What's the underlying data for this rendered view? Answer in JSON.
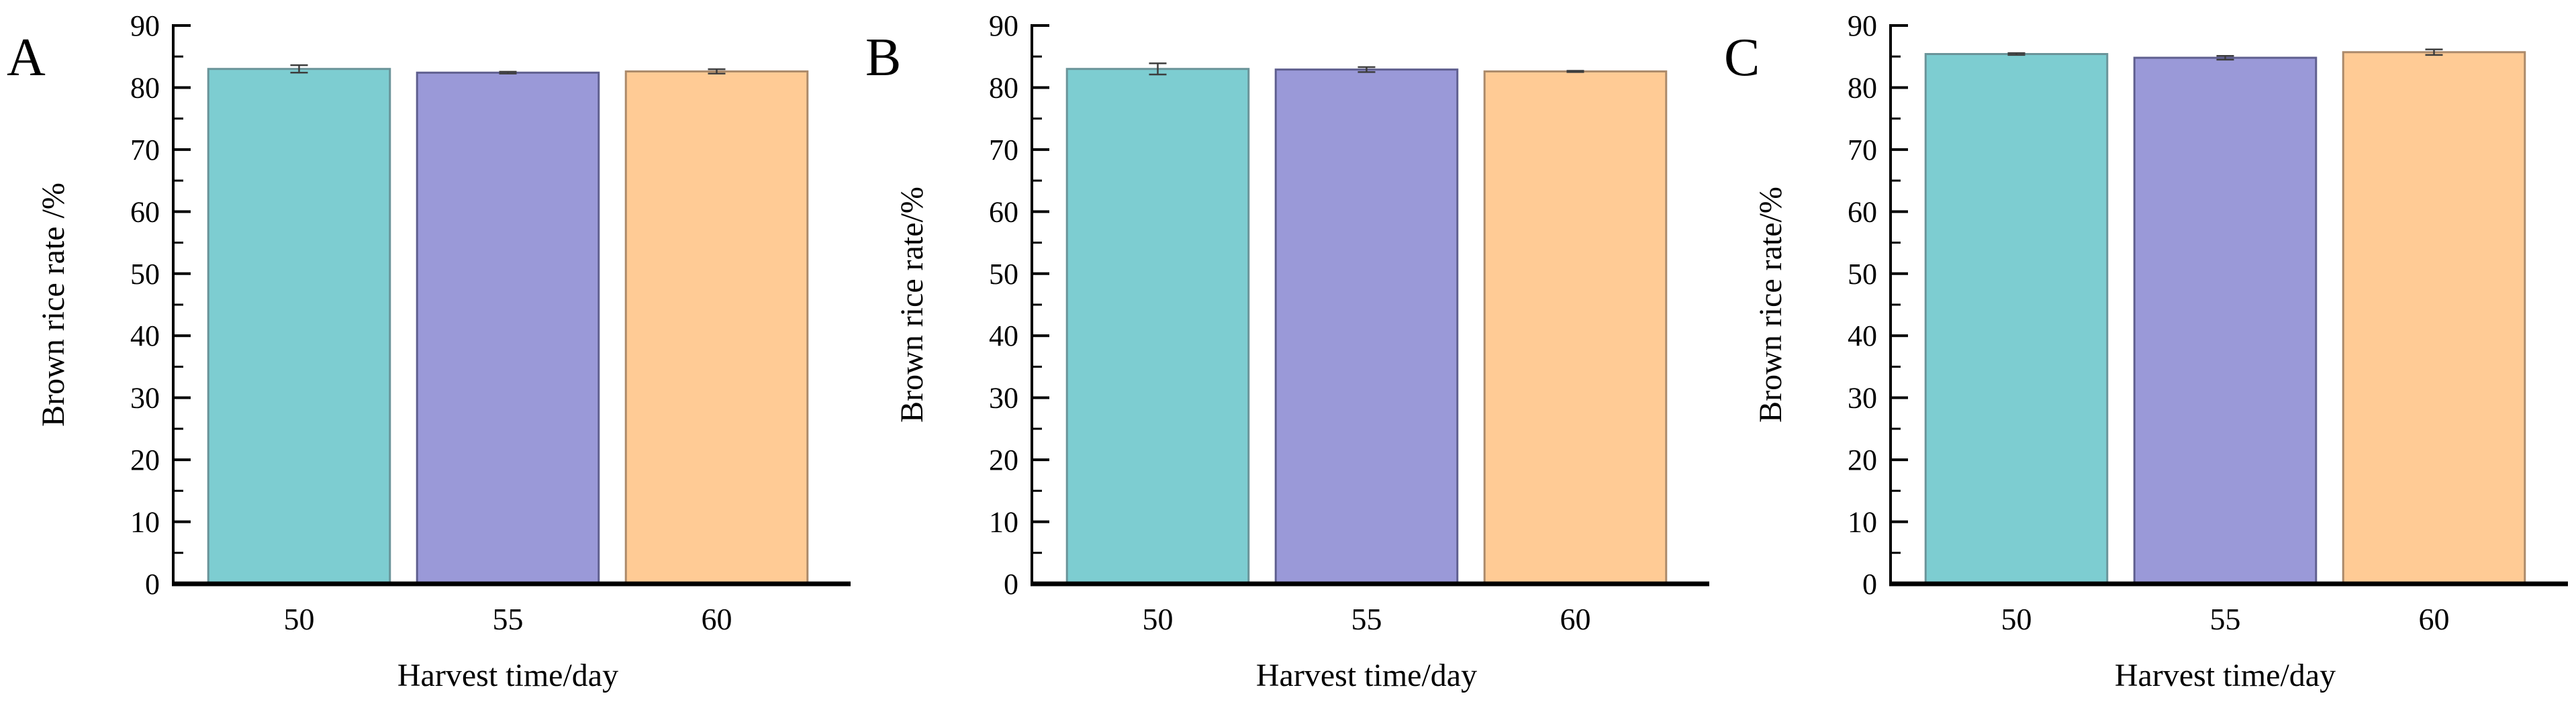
{
  "figure": {
    "background": "#ffffff",
    "text_color": "#000000",
    "error_bar_color": "#3d3d3d"
  },
  "chart_data": [
    {
      "type": "bar",
      "panel_label": "A",
      "title": "",
      "xlabel": "Harvest time/day",
      "ylabel": "Brown rice rate /%",
      "categories": [
        "50",
        "55",
        "60"
      ],
      "values": [
        83.0,
        82.4,
        82.6
      ],
      "errors": [
        0.6,
        0.15,
        0.35
      ],
      "ylim": [
        0,
        90
      ],
      "ytick_step": 10,
      "yminor_step": 5,
      "grid": false,
      "legend": null,
      "bar_colors": [
        "#7dcdd1",
        "#9a99d8",
        "#ffcb95"
      ],
      "bar_border_colors": [
        "#6a9499",
        "#5f5f8f",
        "#ab8a6b"
      ]
    },
    {
      "type": "bar",
      "panel_label": "B",
      "title": "",
      "xlabel": "Harvest time/day",
      "ylabel": "Brown rice rate/%",
      "categories": [
        "50",
        "55",
        "60"
      ],
      "values": [
        83.0,
        82.9,
        82.6
      ],
      "errors": [
        0.9,
        0.4,
        0.1
      ],
      "ylim": [
        0,
        90
      ],
      "ytick_step": 10,
      "yminor_step": 5,
      "grid": false,
      "legend": null,
      "bar_colors": [
        "#7dcdd1",
        "#9a99d8",
        "#ffcb95"
      ],
      "bar_border_colors": [
        "#6a9499",
        "#5f5f8f",
        "#ab8a6b"
      ]
    },
    {
      "type": "bar",
      "panel_label": "C",
      "title": "",
      "xlabel": "Harvest time/day",
      "ylabel": "Brown rice rate/%",
      "categories": [
        "50",
        "55",
        "60"
      ],
      "values": [
        85.4,
        84.8,
        85.7
      ],
      "errors": [
        0.15,
        0.3,
        0.45
      ],
      "ylim": [
        0,
        90
      ],
      "ytick_step": 10,
      "yminor_step": 5,
      "grid": false,
      "legend": null,
      "bar_colors": [
        "#7dcdd1",
        "#9a99d8",
        "#ffcb95"
      ],
      "bar_border_colors": [
        "#6a9499",
        "#5f5f8f",
        "#ab8a6b"
      ]
    }
  ]
}
